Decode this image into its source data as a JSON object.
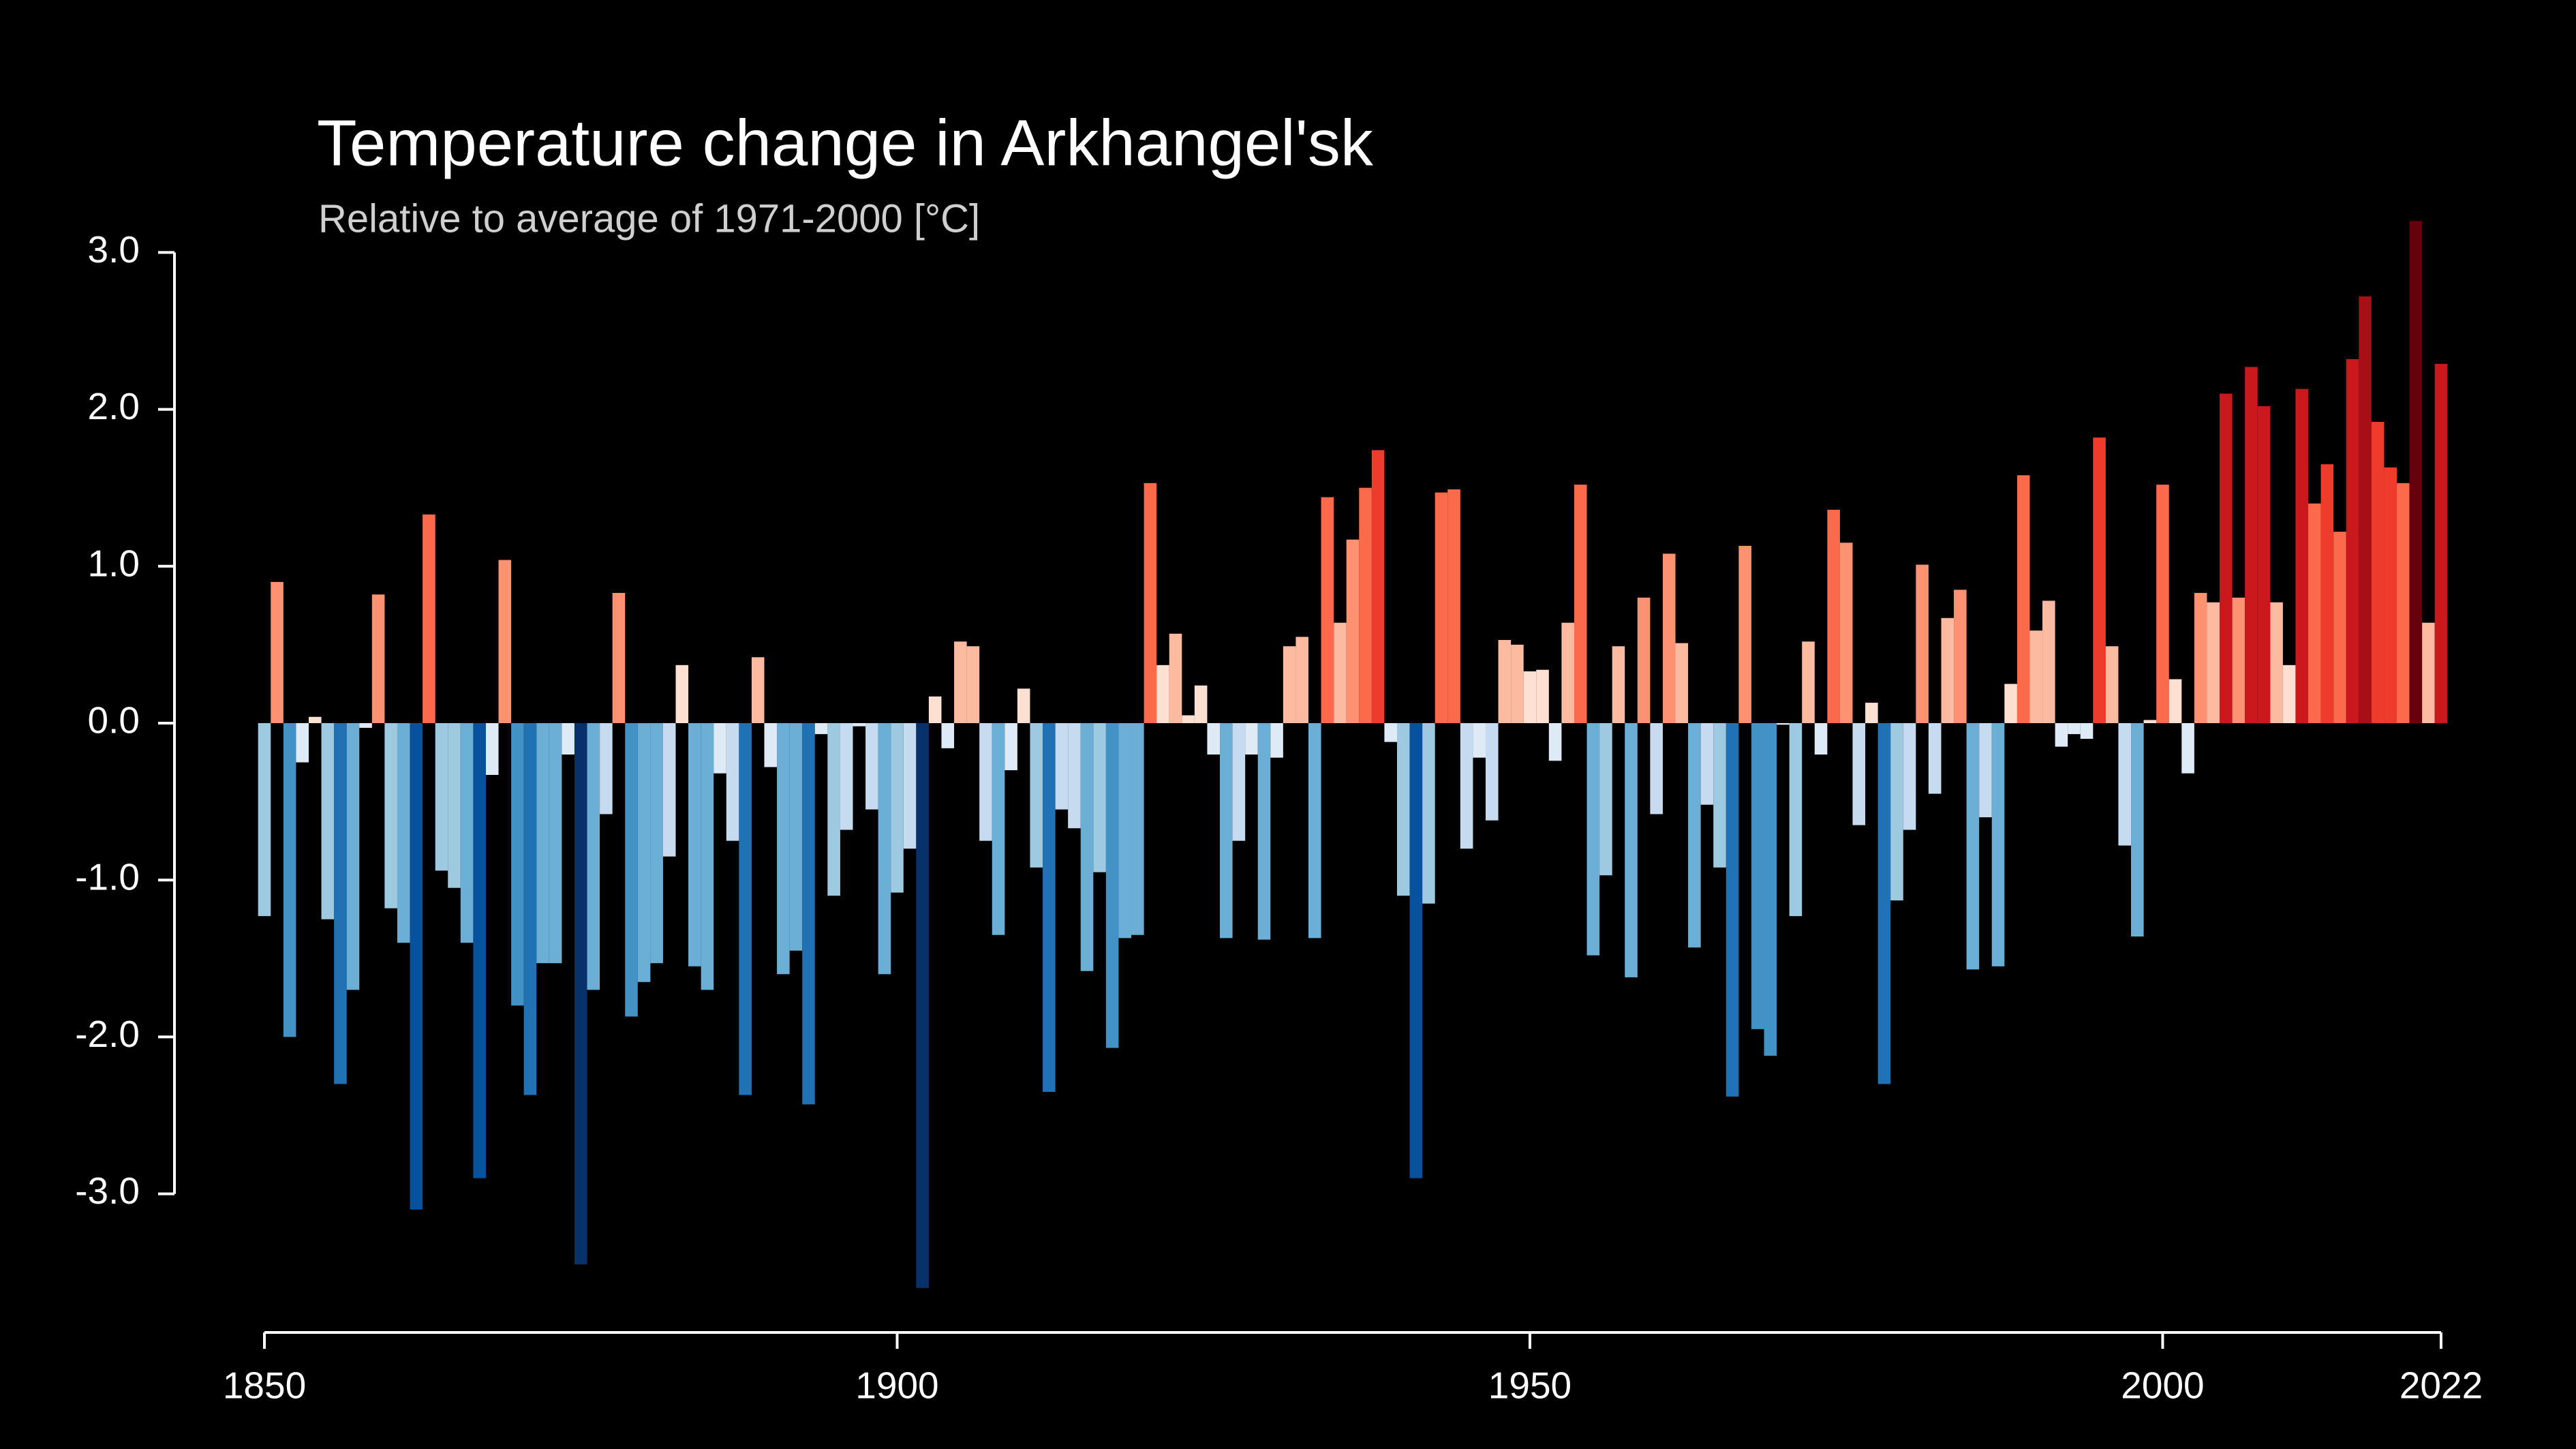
{
  "chart_data": {
    "type": "bar",
    "title": "Temperature change in Arkhangel'sk",
    "subtitle": "Relative to average of 1971-2000  [°C]",
    "x": [
      1850,
      1851,
      1852,
      1853,
      1854,
      1855,
      1856,
      1857,
      1858,
      1859,
      1860,
      1861,
      1862,
      1863,
      1864,
      1865,
      1866,
      1867,
      1868,
      1869,
      1870,
      1871,
      1872,
      1873,
      1874,
      1875,
      1876,
      1877,
      1878,
      1879,
      1880,
      1881,
      1882,
      1883,
      1884,
      1885,
      1886,
      1887,
      1888,
      1889,
      1890,
      1891,
      1892,
      1893,
      1894,
      1895,
      1896,
      1897,
      1898,
      1899,
      1900,
      1901,
      1902,
      1903,
      1904,
      1905,
      1906,
      1907,
      1908,
      1909,
      1910,
      1911,
      1912,
      1913,
      1914,
      1915,
      1916,
      1917,
      1918,
      1919,
      1920,
      1921,
      1922,
      1923,
      1924,
      1925,
      1926,
      1927,
      1928,
      1929,
      1930,
      1931,
      1932,
      1933,
      1934,
      1935,
      1936,
      1937,
      1938,
      1939,
      1940,
      1941,
      1942,
      1943,
      1944,
      1945,
      1946,
      1947,
      1948,
      1949,
      1950,
      1951,
      1952,
      1953,
      1954,
      1955,
      1956,
      1957,
      1958,
      1959,
      1960,
      1961,
      1962,
      1963,
      1964,
      1965,
      1966,
      1967,
      1968,
      1969,
      1970,
      1971,
      1972,
      1973,
      1974,
      1975,
      1976,
      1977,
      1978,
      1979,
      1980,
      1981,
      1982,
      1983,
      1984,
      1985,
      1986,
      1987,
      1988,
      1989,
      1990,
      1991,
      1992,
      1993,
      1994,
      1995,
      1996,
      1997,
      1998,
      1999,
      2000,
      2001,
      2002,
      2003,
      2004,
      2005,
      2006,
      2007,
      2008,
      2009,
      2010,
      2011,
      2012,
      2013,
      2014,
      2015,
      2016,
      2017,
      2018,
      2019,
      2020,
      2021,
      2022
    ],
    "values": [
      -1.23,
      0.9,
      -2.0,
      -0.25,
      0.04,
      -1.25,
      -2.3,
      -1.7,
      -0.03,
      0.82,
      -1.18,
      -1.4,
      -3.1,
      1.33,
      -0.94,
      -1.05,
      -1.4,
      -2.9,
      -0.33,
      1.04,
      -1.8,
      -2.37,
      -1.53,
      -1.53,
      -0.2,
      -3.45,
      -1.7,
      -0.58,
      0.83,
      -1.87,
      -1.65,
      -1.53,
      -0.85,
      0.37,
      -1.55,
      -1.7,
      -0.32,
      -0.75,
      -2.37,
      0.42,
      -0.28,
      -1.6,
      -1.45,
      -2.43,
      -0.07,
      -1.1,
      -0.68,
      -0.02,
      -0.55,
      -1.6,
      -1.08,
      -0.8,
      -3.6,
      0.17,
      -0.16,
      0.52,
      0.49,
      -0.75,
      -1.35,
      -0.3,
      0.22,
      -0.92,
      -2.35,
      -0.55,
      -0.67,
      -1.58,
      -0.95,
      -2.07,
      -1.37,
      -1.35,
      1.53,
      0.37,
      0.57,
      0.05,
      0.24,
      -0.2,
      -1.37,
      -0.75,
      -0.2,
      -1.38,
      -0.22,
      0.49,
      0.55,
      -1.37,
      1.44,
      0.64,
      1.17,
      1.5,
      1.74,
      -0.12,
      -1.1,
      -2.9,
      -1.15,
      1.47,
      1.49,
      -0.8,
      -0.22,
      -0.62,
      0.53,
      0.5,
      0.33,
      0.34,
      -0.24,
      0.64,
      1.52,
      -1.48,
      -0.97,
      0.49,
      -1.62,
      0.8,
      -0.58,
      1.08,
      0.51,
      -1.43,
      -0.52,
      -0.92,
      -2.38,
      1.13,
      -1.95,
      -2.12,
      -0.01,
      -1.23,
      0.52,
      -0.2,
      1.36,
      1.15,
      -0.65,
      0.13,
      -2.3,
      -1.13,
      -0.68,
      1.01,
      -0.45,
      0.67,
      0.85,
      -1.57,
      -0.6,
      -1.55,
      0.25,
      1.58,
      0.59,
      0.78,
      -0.15,
      -0.07,
      -0.1,
      1.82,
      0.49,
      -0.78,
      -1.36,
      0.02,
      1.52,
      0.28,
      -0.32,
      0.83,
      0.77,
      2.1,
      0.8,
      2.27,
      2.02,
      0.77,
      0.37,
      2.13,
      1.4,
      1.65,
      1.22,
      2.32,
      2.72,
      1.92,
      1.63,
      1.53,
      3.2,
      0.64,
      2.29
    ],
    "xlim": [
      1850,
      2022
    ],
    "xticks": [
      1850,
      1900,
      1950,
      2000,
      2022
    ],
    "ylim": [
      -3.75,
      3.3
    ],
    "yticks": [
      {
        "value": -3,
        "label": "-3.0"
      },
      {
        "value": -2,
        "label": "-2.0"
      },
      {
        "value": -1,
        "label": "-1.0"
      },
      {
        "value": 0,
        "label": "0.0"
      },
      {
        "value": 1,
        "label": "1.0"
      },
      {
        "value": 2,
        "label": "2.0"
      },
      {
        "value": 3,
        "label": "3.0"
      }
    ]
  }
}
